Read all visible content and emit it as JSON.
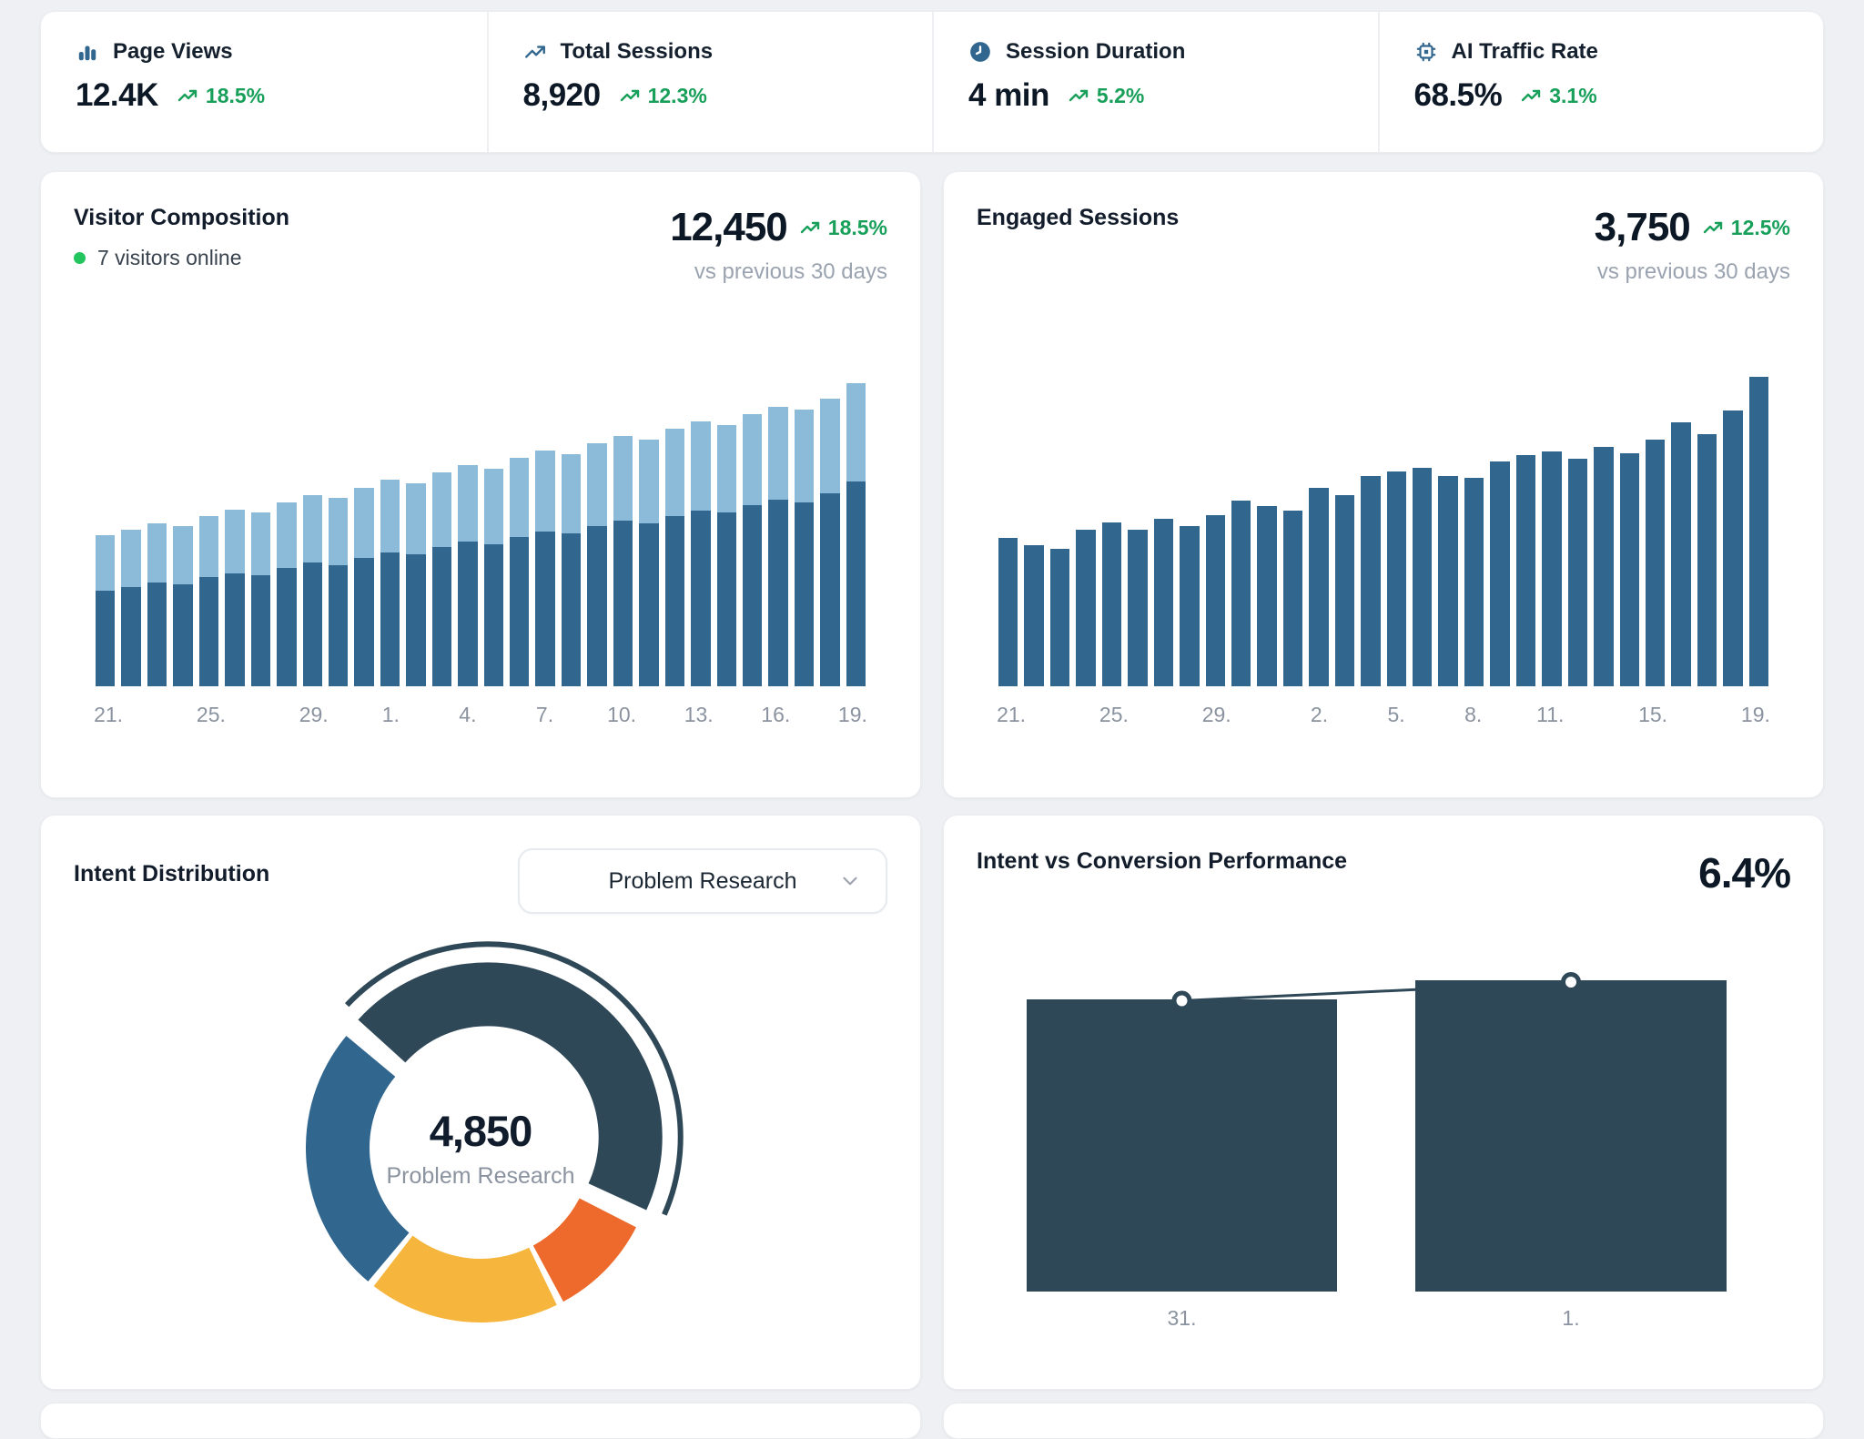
{
  "colors": {
    "accent_blue": "#31668f",
    "light_blue": "#8cbbd9",
    "slate": "#2f4858",
    "orange": "#ed6a2c",
    "amber": "#f6b53d",
    "green": "#18a05a",
    "green_dot": "#22c55e"
  },
  "kpis": [
    {
      "icon": "bar-chart-icon",
      "label": "Page Views",
      "value": "12.4K",
      "trend": "18.5%"
    },
    {
      "icon": "trending-up-icon",
      "label": "Total Sessions",
      "value": "8,920",
      "trend": "12.3%"
    },
    {
      "icon": "clock-icon",
      "label": "Session Duration",
      "value": "4 min",
      "trend": "5.2%"
    },
    {
      "icon": "cpu-chip-icon",
      "label": "AI Traffic Rate",
      "value": "68.5%",
      "trend": "3.1%"
    }
  ],
  "visitor_composition": {
    "title": "Visitor Composition",
    "online_label": "7 visitors online",
    "value": "12,450",
    "trend": "18.5%",
    "comparison": "vs previous 30 days"
  },
  "engaged_sessions": {
    "title": "Engaged Sessions",
    "value": "3,750",
    "trend": "12.5%",
    "comparison": "vs previous 30 days"
  },
  "intent_distribution": {
    "title": "Intent Distribution",
    "dropdown_value": "Problem Research",
    "center_value": "4,850",
    "center_label": "Problem Research"
  },
  "intent_conversion": {
    "title": "Intent vs Conversion Performance",
    "rate": "6.4%"
  },
  "chart_data": [
    {
      "id": "visitor_composition",
      "type": "bar",
      "stacked": true,
      "title": "Visitor Composition",
      "ylim": [
        0,
        300
      ],
      "x_labels": [
        {
          "index": 0,
          "text": "21."
        },
        {
          "index": 4,
          "text": "25."
        },
        {
          "index": 8,
          "text": "29."
        },
        {
          "index": 11,
          "text": "1."
        },
        {
          "index": 14,
          "text": "4."
        },
        {
          "index": 17,
          "text": "7."
        },
        {
          "index": 20,
          "text": "10."
        },
        {
          "index": 23,
          "text": "13."
        },
        {
          "index": 26,
          "text": "16."
        },
        {
          "index": 29,
          "text": "19."
        }
      ],
      "series": [
        {
          "name": "bottom-dark-blue",
          "color": "#31668f",
          "values": [
            91,
            95,
            99,
            97,
            104,
            108,
            106,
            113,
            118,
            116,
            123,
            128,
            126,
            133,
            138,
            136,
            143,
            148,
            146,
            153,
            158,
            156,
            163,
            168,
            166,
            173,
            178,
            176,
            184,
            196
          ]
        },
        {
          "name": "top-light-blue",
          "color": "#8cbbd9",
          "values": [
            53,
            55,
            57,
            56,
            59,
            61,
            60,
            63,
            65,
            64,
            67,
            69,
            68,
            71,
            73,
            72,
            75,
            77,
            76,
            79,
            81,
            80,
            83,
            85,
            84,
            87,
            89,
            88,
            91,
            94
          ]
        }
      ]
    },
    {
      "id": "engaged_sessions",
      "type": "bar",
      "stacked": false,
      "title": "Engaged Sessions",
      "ylim": [
        0,
        345
      ],
      "x_labels": [
        {
          "index": 0,
          "text": "21."
        },
        {
          "index": 4,
          "text": "25."
        },
        {
          "index": 8,
          "text": "29."
        },
        {
          "index": 12,
          "text": "2."
        },
        {
          "index": 15,
          "text": "5."
        },
        {
          "index": 18,
          "text": "8."
        },
        {
          "index": 21,
          "text": "11."
        },
        {
          "index": 25,
          "text": "15."
        },
        {
          "index": 29,
          "text": "19."
        }
      ],
      "series": [
        {
          "name": "sessions",
          "color": "#31668f",
          "values": [
            163,
            155,
            151,
            172,
            180,
            172,
            184,
            176,
            188,
            204,
            198,
            193,
            218,
            210,
            231,
            236,
            240,
            231,
            229,
            247,
            254,
            258,
            250,
            263,
            256,
            271,
            290,
            277,
            303,
            340
          ]
        }
      ]
    },
    {
      "id": "intent_distribution",
      "type": "pie",
      "title": "Intent Distribution",
      "start_angle": -49,
      "explode_offset": 14,
      "segments": [
        {
          "label": "Problem Research",
          "value": 4850,
          "color": "#2f4858",
          "selected": true
        },
        {
          "label": "",
          "value": 1090,
          "color": "#ed6a2c",
          "selected": false
        },
        {
          "label": "",
          "value": 1940,
          "color": "#f6b53d",
          "selected": false
        },
        {
          "label": "",
          "value": 2710,
          "color": "#31668f",
          "selected": false
        }
      ],
      "center_value": "4,850",
      "center_label": "Problem Research"
    },
    {
      "id": "intent_conversion",
      "type": "bar",
      "title": "Intent vs Conversion Performance",
      "categories": [
        "31.",
        "1."
      ],
      "series": [
        {
          "name": "intent-sessions",
          "type": "bar",
          "color": "#2f4858",
          "values": [
            94,
            100
          ]
        },
        {
          "name": "conversion-rate",
          "type": "line",
          "color": "#2f4858",
          "values": [
            6.2,
            6.4
          ]
        }
      ]
    }
  ]
}
